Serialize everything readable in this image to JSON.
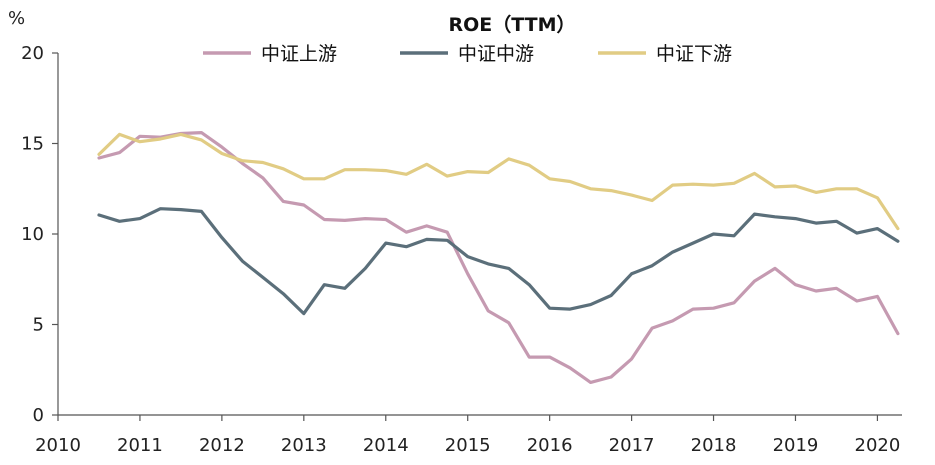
{
  "chart_data": {
    "type": "line",
    "title": "ROE（TTM）",
    "ylabel": "%",
    "xlabel": "",
    "xlim": [
      2010,
      2020.3
    ],
    "ylim": [
      0,
      20
    ],
    "yticks": [
      0,
      5,
      10,
      15,
      20
    ],
    "xticks": [
      2010,
      2011,
      2012,
      2013,
      2014,
      2015,
      2016,
      2017,
      2018,
      2019,
      2020
    ],
    "grid": false,
    "legend_position": "top-center",
    "series": [
      {
        "name": "中证上游",
        "color": "#c59ab1",
        "x": [
          2010.5,
          2010.75,
          2011.0,
          2011.25,
          2011.5,
          2011.75,
          2012.0,
          2012.25,
          2012.5,
          2012.75,
          2013.0,
          2013.25,
          2013.5,
          2013.75,
          2014.0,
          2014.25,
          2014.5,
          2014.75,
          2015.0,
          2015.25,
          2015.5,
          2015.75,
          2016.0,
          2016.25,
          2016.5,
          2016.75,
          2017.0,
          2017.25,
          2017.5,
          2017.75,
          2018.0,
          2018.25,
          2018.5,
          2018.75,
          2019.0,
          2019.25,
          2019.5,
          2019.75,
          2020.0,
          2020.25
        ],
        "values": [
          14.2,
          14.5,
          15.4,
          15.35,
          15.55,
          15.6,
          14.8,
          13.9,
          13.1,
          11.8,
          11.6,
          10.8,
          10.75,
          10.85,
          10.8,
          10.1,
          10.45,
          10.1,
          7.8,
          5.75,
          5.1,
          3.2,
          3.2,
          2.6,
          1.8,
          2.1,
          3.1,
          4.8,
          5.2,
          5.85,
          5.9,
          6.2,
          7.4,
          8.1,
          7.2,
          6.85,
          7.0,
          6.3,
          6.55,
          4.5
        ]
      },
      {
        "name": "中证中游",
        "color": "#5b6f7a",
        "x": [
          2010.5,
          2010.75,
          2011.0,
          2011.25,
          2011.5,
          2011.75,
          2012.0,
          2012.25,
          2012.5,
          2012.75,
          2013.0,
          2013.25,
          2013.5,
          2013.75,
          2014.0,
          2014.25,
          2014.5,
          2014.75,
          2015.0,
          2015.25,
          2015.5,
          2015.75,
          2016.0,
          2016.25,
          2016.5,
          2016.75,
          2017.0,
          2017.25,
          2017.5,
          2017.75,
          2018.0,
          2018.25,
          2018.5,
          2018.75,
          2019.0,
          2019.25,
          2019.5,
          2019.75,
          2020.0,
          2020.25
        ],
        "values": [
          11.05,
          10.7,
          10.85,
          11.4,
          11.35,
          11.25,
          9.8,
          8.5,
          7.6,
          6.7,
          5.6,
          7.2,
          7.0,
          8.1,
          9.5,
          9.3,
          9.7,
          9.65,
          8.75,
          8.35,
          8.1,
          7.2,
          5.9,
          5.85,
          6.1,
          6.6,
          7.8,
          8.25,
          9.0,
          9.5,
          10.0,
          9.9,
          11.1,
          10.95,
          10.85,
          10.6,
          10.7,
          10.05,
          10.3,
          9.6
        ]
      },
      {
        "name": "中证下游",
        "color": "#e1cc84",
        "x": [
          2010.5,
          2010.75,
          2011.0,
          2011.25,
          2011.5,
          2011.75,
          2012.0,
          2012.25,
          2012.5,
          2012.75,
          2013.0,
          2013.25,
          2013.5,
          2013.75,
          2014.0,
          2014.25,
          2014.5,
          2014.75,
          2015.0,
          2015.25,
          2015.5,
          2015.75,
          2016.0,
          2016.25,
          2016.5,
          2016.75,
          2017.0,
          2017.25,
          2017.5,
          2017.75,
          2018.0,
          2018.25,
          2018.5,
          2018.75,
          2019.0,
          2019.25,
          2019.5,
          2019.75,
          2020.0,
          2020.25
        ],
        "values": [
          14.4,
          15.5,
          15.1,
          15.25,
          15.5,
          15.2,
          14.45,
          14.05,
          13.95,
          13.6,
          13.05,
          13.05,
          13.55,
          13.55,
          13.5,
          13.3,
          13.85,
          13.2,
          13.45,
          13.4,
          14.15,
          13.8,
          13.05,
          12.9,
          12.5,
          12.4,
          12.15,
          11.85,
          12.7,
          12.75,
          12.7,
          12.8,
          13.35,
          12.6,
          12.65,
          12.3,
          12.5,
          12.5,
          12.0,
          10.3
        ]
      }
    ]
  }
}
